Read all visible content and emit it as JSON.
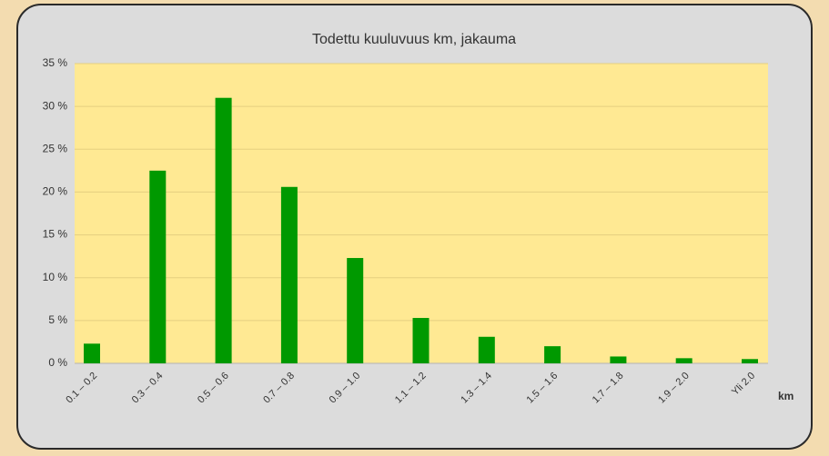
{
  "chart_data": {
    "type": "bar",
    "title": "Todettu kuuluvuus km, jakauma",
    "x_label": "km",
    "categories": [
      "0.1 – 0.2",
      "0.3 – 0.4",
      "0.5 – 0.6",
      "0.7 – 0.8",
      "0.9 – 1.0",
      "1.1 – 1.2",
      "1.3 – 1.4",
      "1.5 – 1.6",
      "1.7 – 1.8",
      "1.9 – 2.0",
      "Yli 2.0"
    ],
    "values": [
      2.3,
      22.5,
      31,
      20.6,
      12.3,
      5.3,
      3.1,
      2,
      0.8,
      0.6,
      0.5
    ],
    "color": "#009900",
    "ylim": [
      0,
      35
    ],
    "yticks": [
      {
        "value": 0,
        "label": "0 %"
      },
      {
        "value": 5,
        "label": "5 %"
      },
      {
        "value": 10,
        "label": "10 %"
      },
      {
        "value": 15,
        "label": "15 %"
      },
      {
        "value": 20,
        "label": "20 %"
      },
      {
        "value": 25,
        "label": "25 %"
      },
      {
        "value": 30,
        "label": "30 %"
      },
      {
        "value": 35,
        "label": "35 %"
      }
    ],
    "grid": true
  }
}
